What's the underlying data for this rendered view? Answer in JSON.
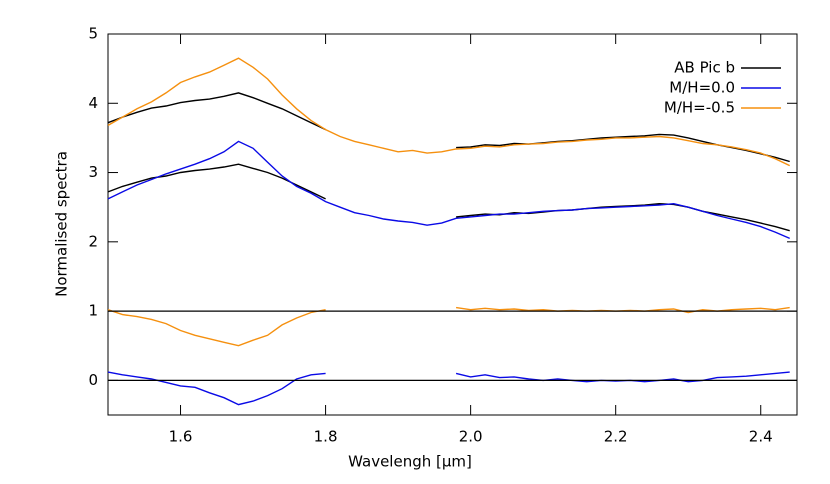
{
  "chart_data": {
    "type": "line",
    "xlabel": "Wavelengh [μm]",
    "ylabel": "Normalised spectra",
    "xlim": [
      1.5,
      2.45
    ],
    "ylim": [
      -0.5,
      5
    ],
    "xticks": [
      {
        "value": 1.6,
        "label": "1.6"
      },
      {
        "value": 1.8,
        "label": "1.8"
      },
      {
        "value": 2.0,
        "label": "2.0"
      },
      {
        "value": 2.2,
        "label": "2.2"
      },
      {
        "value": 2.4,
        "label": "2.4"
      }
    ],
    "yticks": [
      0,
      1,
      2,
      3,
      4,
      5
    ],
    "hlines": [
      0,
      1
    ],
    "legend": "upper right",
    "x": [
      1.5,
      1.52,
      1.54,
      1.56,
      1.58,
      1.6,
      1.62,
      1.64,
      1.66,
      1.68,
      1.7,
      1.72,
      1.74,
      1.76,
      1.78,
      1.8,
      1.82,
      1.84,
      1.86,
      1.88,
      1.9,
      1.92,
      1.94,
      1.96,
      1.98,
      2.0,
      2.02,
      2.04,
      2.06,
      2.08,
      2.1,
      2.12,
      2.14,
      2.16,
      2.18,
      2.2,
      2.22,
      2.24,
      2.26,
      2.28,
      2.3,
      2.32,
      2.34,
      2.36,
      2.38,
      2.4,
      2.42,
      2.44
    ],
    "series": [
      {
        "name": "AB Pic b",
        "color": "#000000",
        "values": [
          [
            3.72,
            3.8,
            3.87,
            3.93,
            3.96,
            4.01,
            4.04,
            4.06,
            4.1,
            4.15,
            4.08,
            4.0,
            3.92,
            3.82,
            3.72,
            3.62,
            null,
            null,
            null,
            null,
            null,
            null,
            null,
            null,
            3.36,
            3.37,
            3.4,
            3.39,
            3.42,
            3.41,
            3.43,
            3.45,
            3.46,
            3.48,
            3.5,
            3.51,
            3.52,
            3.53,
            3.55,
            3.54,
            3.5,
            3.45,
            3.4,
            3.36,
            3.32,
            3.27,
            3.22,
            3.16
          ],
          [
            2.72,
            2.8,
            2.86,
            2.92,
            2.95,
            3.0,
            3.03,
            3.05,
            3.08,
            3.12,
            3.06,
            3.0,
            2.92,
            2.82,
            2.72,
            2.62,
            null,
            null,
            null,
            null,
            null,
            null,
            null,
            null,
            2.36,
            2.38,
            2.4,
            2.39,
            2.42,
            2.41,
            2.43,
            2.45,
            2.46,
            2.48,
            2.5,
            2.51,
            2.52,
            2.53,
            2.55,
            2.54,
            2.5,
            2.44,
            2.4,
            2.36,
            2.32,
            2.27,
            2.22,
            2.16
          ]
        ]
      },
      {
        "name": "M/H=0.0",
        "color": "#0a0ae6",
        "values": [
          [
            2.62,
            2.72,
            2.82,
            2.9,
            2.98,
            3.05,
            3.12,
            3.2,
            3.3,
            3.45,
            3.35,
            3.15,
            2.95,
            2.8,
            2.7,
            2.58,
            2.5,
            2.42,
            2.38,
            2.33,
            2.3,
            2.28,
            2.24,
            2.27,
            2.34,
            2.36,
            2.38,
            2.4,
            2.4,
            2.42,
            2.44,
            2.45,
            2.46,
            2.48,
            2.49,
            2.5,
            2.51,
            2.52,
            2.53,
            2.55,
            2.5,
            2.44,
            2.38,
            2.33,
            2.28,
            2.22,
            2.14,
            2.05
          ],
          [
            0.12,
            0.08,
            0.05,
            0.02,
            -0.03,
            -0.08,
            -0.1,
            -0.18,
            -0.25,
            -0.35,
            -0.3,
            -0.22,
            -0.12,
            0.02,
            0.08,
            0.1,
            null,
            null,
            null,
            null,
            null,
            null,
            null,
            null,
            0.1,
            0.05,
            0.08,
            0.04,
            0.05,
            0.02,
            0.0,
            0.02,
            0.0,
            -0.02,
            0.0,
            -0.01,
            0.0,
            -0.02,
            0.0,
            0.02,
            -0.02,
            0.0,
            0.04,
            0.05,
            0.06,
            0.08,
            0.1,
            0.12
          ]
        ]
      },
      {
        "name": "M/H=-0.5",
        "color": "#f5900f",
        "values": [
          [
            3.68,
            3.8,
            3.92,
            4.02,
            4.15,
            4.3,
            4.38,
            4.45,
            4.55,
            4.65,
            4.52,
            4.35,
            4.12,
            3.92,
            3.75,
            3.62,
            3.52,
            3.45,
            3.4,
            3.35,
            3.3,
            3.32,
            3.28,
            3.3,
            3.34,
            3.35,
            3.38,
            3.37,
            3.4,
            3.41,
            3.42,
            3.44,
            3.45,
            3.47,
            3.48,
            3.5,
            3.5,
            3.51,
            3.52,
            3.5,
            3.46,
            3.42,
            3.4,
            3.37,
            3.33,
            3.28,
            3.2,
            3.1
          ],
          [
            1.02,
            0.95,
            0.92,
            0.88,
            0.82,
            0.72,
            0.65,
            0.6,
            0.55,
            0.5,
            0.58,
            0.65,
            0.8,
            0.9,
            0.98,
            1.02,
            null,
            null,
            null,
            null,
            null,
            null,
            null,
            null,
            1.05,
            1.02,
            1.04,
            1.02,
            1.03,
            1.01,
            1.02,
            1.0,
            1.01,
            1.0,
            1.01,
            1.0,
            1.01,
            1.0,
            1.02,
            1.03,
            0.98,
            1.02,
            1.0,
            1.02,
            1.03,
            1.04,
            1.02,
            1.05
          ]
        ]
      }
    ]
  }
}
